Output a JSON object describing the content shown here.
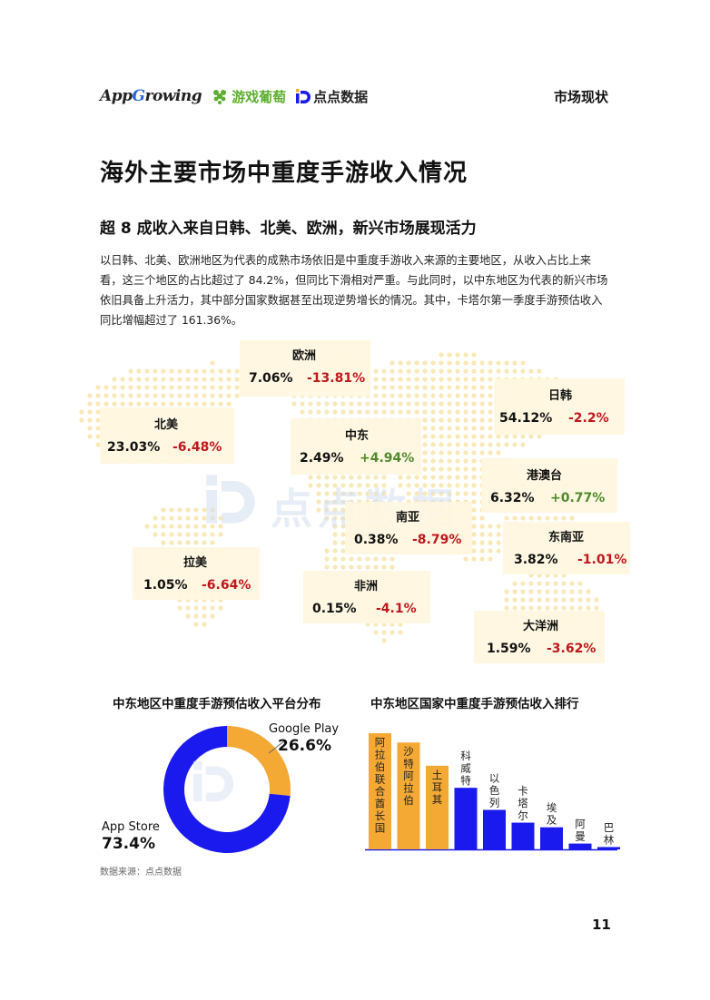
{
  "header": {
    "brand_appgrowing": "AppGrowing",
    "brand_youxi": "游戏葡萄",
    "brand_diandian": "点点数据",
    "section": "市场现状"
  },
  "title": "海外主要市场中重度手游收入情况",
  "subtitle": "超 8 成收入来自日韩、北美、欧洲，新兴市场展现活力",
  "paragraph": "以日韩、北美、欧洲地区为代表的成熟市场依旧是中重度手游收入来源的主要地区，从收入占比上来看，这三个地区的占比超过了 84.2%，但同比下滑相对严重。与此同时，以中东地区为代表的新兴市场依旧具备上升活力，其中部分国家数据甚至出现逆势增长的情况。其中，卡塔尔第一季度手游预估收入同比增幅超过了 161.36%。",
  "watermark": "点点数据",
  "regions": [
    {
      "name": "欧洲",
      "share": "7.06%",
      "change": "-13.81%",
      "trend": "down"
    },
    {
      "name": "日韩",
      "share": "54.12%",
      "change": "-2.2%",
      "trend": "down"
    },
    {
      "name": "北美",
      "share": "23.03%",
      "change": "-6.48%",
      "trend": "down"
    },
    {
      "name": "中东",
      "share": "2.49%",
      "change": "+4.94%",
      "trend": "up"
    },
    {
      "name": "港澳台",
      "share": "6.32%",
      "change": "+0.77%",
      "trend": "up"
    },
    {
      "name": "南亚",
      "share": "0.38%",
      "change": "-8.79%",
      "trend": "down"
    },
    {
      "name": "东南亚",
      "share": "3.82%",
      "change": "-1.01%",
      "trend": "down"
    },
    {
      "name": "拉美",
      "share": "1.05%",
      "change": "-6.64%",
      "trend": "down"
    },
    {
      "name": "非洲",
      "share": "0.15%",
      "change": "-4.1%",
      "trend": "down"
    },
    {
      "name": "大洋洲",
      "share": "1.59%",
      "change": "-3.62%",
      "trend": "down"
    }
  ],
  "colors": {
    "orange": "#f4a935",
    "blue": "#1a1aee",
    "negative": "#c0161c",
    "positive": "#4f8a2a"
  },
  "chart_data": [
    {
      "type": "pie",
      "title": "中东地区中重度手游预估收入平台分布",
      "slices": [
        {
          "label": "Google Play",
          "value": 26.6,
          "display": "26.6%",
          "color": "#f4a935"
        },
        {
          "label": "App Store",
          "value": 73.4,
          "display": "73.4%",
          "color": "#1a1aee"
        }
      ]
    },
    {
      "type": "bar",
      "title": "中东地区国家中重度手游预估收入排行",
      "categories": [
        "阿拉伯联合酋长国",
        "沙特阿拉伯",
        "土耳其",
        "科威特",
        "以色列",
        "卡塔尔",
        "埃及",
        "阿曼",
        "巴林"
      ],
      "values": [
        100,
        92,
        72,
        53,
        34,
        23,
        19,
        5,
        2
      ],
      "colors": [
        "#f4a935",
        "#f4a935",
        "#f4a935",
        "#1a1aee",
        "#1a1aee",
        "#1a1aee",
        "#1a1aee",
        "#1a1aee",
        "#1a1aee"
      ],
      "ylim": [
        0,
        100
      ]
    }
  ],
  "source": "数据来源：点点数据",
  "page_number": "11"
}
